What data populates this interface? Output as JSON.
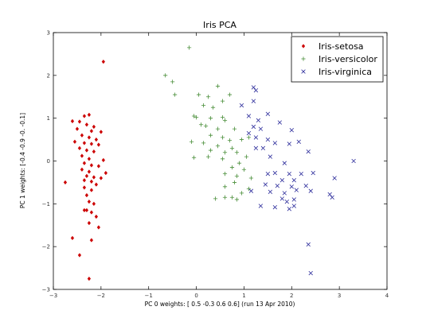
{
  "chart_data": {
    "type": "scatter",
    "title": "Iris PCA",
    "xlabel": "PC 0 weights: [ 0.5 -0.3  0.6  0.6]    (run 13 Apr 2010)",
    "ylabel": "PC 1 weights: [-0.4 -0.9 -0.  -0.1]",
    "xlim": [
      -3,
      4
    ],
    "ylim": [
      -3,
      3
    ],
    "xticks": [
      "−3",
      "−2",
      "−1",
      "0",
      "1",
      "2",
      "3",
      "4"
    ],
    "yticks": [
      "−3",
      "−2",
      "−1",
      "0",
      "1",
      "2",
      "3"
    ],
    "grid": false,
    "legend_position": "top-right",
    "series": [
      {
        "name": "Iris-setosa",
        "marker": "diamond",
        "color": "#cc0000",
        "points": [
          [
            -1.95,
            2.32
          ],
          [
            -2.25,
            1.08
          ],
          [
            -2.35,
            1.05
          ],
          [
            -2.6,
            0.93
          ],
          [
            -2.45,
            0.92
          ],
          [
            -2.3,
            0.85
          ],
          [
            -2.15,
            0.8
          ],
          [
            -2.5,
            0.75
          ],
          [
            -2.2,
            0.7
          ],
          [
            -2.0,
            0.68
          ],
          [
            -2.4,
            0.6
          ],
          [
            -2.25,
            0.55
          ],
          [
            -2.1,
            0.5
          ],
          [
            -2.55,
            0.45
          ],
          [
            -2.35,
            0.42
          ],
          [
            -2.2,
            0.4
          ],
          [
            -2.05,
            0.38
          ],
          [
            -2.45,
            0.3
          ],
          [
            -2.3,
            0.25
          ],
          [
            -2.15,
            0.22
          ],
          [
            -2.4,
            0.12
          ],
          [
            -2.25,
            0.05
          ],
          [
            -1.95,
            0.02
          ],
          [
            -2.35,
            -0.05
          ],
          [
            -2.2,
            -0.1
          ],
          [
            -2.05,
            -0.12
          ],
          [
            -2.4,
            -0.2
          ],
          [
            -2.25,
            -0.25
          ],
          [
            -1.9,
            -0.28
          ],
          [
            -2.3,
            -0.35
          ],
          [
            -2.15,
            -0.38
          ],
          [
            -2.0,
            -0.4
          ],
          [
            -2.35,
            -0.45
          ],
          [
            -2.2,
            -0.48
          ],
          [
            -2.75,
            -0.5
          ],
          [
            -2.1,
            -0.55
          ],
          [
            -2.35,
            -0.62
          ],
          [
            -2.2,
            -0.68
          ],
          [
            -2.3,
            -0.8
          ],
          [
            -2.25,
            -0.95
          ],
          [
            -2.15,
            -1.0
          ],
          [
            -2.35,
            -1.15
          ],
          [
            -2.3,
            -1.15
          ],
          [
            -2.2,
            -1.2
          ],
          [
            -2.1,
            -1.3
          ],
          [
            -2.25,
            -1.45
          ],
          [
            -2.05,
            -1.55
          ],
          [
            -2.6,
            -1.8
          ],
          [
            -2.2,
            -1.85
          ],
          [
            -2.45,
            -2.2
          ],
          [
            -2.25,
            -2.75
          ]
        ]
      },
      {
        "name": "Iris-versicolor",
        "marker": "plus",
        "color": "#4a8f3a",
        "points": [
          [
            -0.15,
            2.65
          ],
          [
            -0.65,
            2.0
          ],
          [
            -0.5,
            1.85
          ],
          [
            -0.45,
            1.55
          ],
          [
            0.05,
            1.55
          ],
          [
            0.45,
            1.75
          ],
          [
            0.7,
            1.55
          ],
          [
            0.25,
            1.5
          ],
          [
            0.55,
            1.4
          ],
          [
            0.15,
            1.3
          ],
          [
            0.35,
            1.25
          ],
          [
            -0.05,
            1.05
          ],
          [
            0.0,
            1.02
          ],
          [
            0.3,
            1.0
          ],
          [
            0.55,
            1.02
          ],
          [
            0.6,
            0.95
          ],
          [
            0.1,
            0.85
          ],
          [
            0.2,
            0.82
          ],
          [
            0.45,
            0.75
          ],
          [
            0.8,
            0.75
          ],
          [
            0.3,
            0.6
          ],
          [
            0.55,
            0.55
          ],
          [
            0.7,
            0.48
          ],
          [
            0.95,
            0.5
          ],
          [
            1.1,
            0.55
          ],
          [
            -0.1,
            0.45
          ],
          [
            0.15,
            0.42
          ],
          [
            0.45,
            0.35
          ],
          [
            0.75,
            0.3
          ],
          [
            0.3,
            0.25
          ],
          [
            0.6,
            0.2
          ],
          [
            0.85,
            0.2
          ],
          [
            1.05,
            0.1
          ],
          [
            -0.05,
            0.08
          ],
          [
            0.25,
            0.1
          ],
          [
            0.55,
            0.05
          ],
          [
            0.9,
            -0.05
          ],
          [
            0.75,
            -0.15
          ],
          [
            1.0,
            -0.2
          ],
          [
            0.6,
            -0.3
          ],
          [
            0.85,
            -0.35
          ],
          [
            1.15,
            -0.4
          ],
          [
            0.8,
            -0.5
          ],
          [
            0.6,
            -0.6
          ],
          [
            1.1,
            -0.65
          ],
          [
            0.95,
            -0.75
          ],
          [
            0.75,
            -0.85
          ],
          [
            0.4,
            -0.88
          ],
          [
            0.6,
            -0.85
          ],
          [
            0.85,
            -0.9
          ]
        ]
      },
      {
        "name": "Iris-virginica",
        "marker": "x",
        "color": "#2a2a9a",
        "points": [
          [
            1.2,
            1.72
          ],
          [
            1.25,
            1.65
          ],
          [
            1.2,
            1.4
          ],
          [
            0.95,
            1.3
          ],
          [
            1.1,
            1.05
          ],
          [
            1.5,
            1.1
          ],
          [
            1.3,
            0.95
          ],
          [
            1.75,
            0.9
          ],
          [
            1.2,
            0.8
          ],
          [
            1.35,
            0.75
          ],
          [
            2.0,
            0.72
          ],
          [
            1.1,
            0.65
          ],
          [
            1.25,
            0.55
          ],
          [
            1.5,
            0.5
          ],
          [
            1.65,
            0.42
          ],
          [
            1.95,
            0.4
          ],
          [
            2.15,
            0.45
          ],
          [
            1.4,
            0.3
          ],
          [
            1.25,
            0.3
          ],
          [
            1.55,
            0.1
          ],
          [
            2.35,
            0.22
          ],
          [
            3.3,
            0.0
          ],
          [
            1.85,
            -0.05
          ],
          [
            1.95,
            -0.3
          ],
          [
            1.5,
            -0.3
          ],
          [
            1.65,
            -0.28
          ],
          [
            2.2,
            -0.3
          ],
          [
            2.45,
            -0.28
          ],
          [
            2.05,
            -0.45
          ],
          [
            2.9,
            -0.4
          ],
          [
            1.8,
            -0.45
          ],
          [
            2.3,
            -0.58
          ],
          [
            1.45,
            -0.55
          ],
          [
            1.7,
            -0.58
          ],
          [
            2.0,
            -0.6
          ],
          [
            1.15,
            -0.7
          ],
          [
            1.55,
            -0.72
          ],
          [
            1.85,
            -0.75
          ],
          [
            2.1,
            -0.68
          ],
          [
            2.4,
            -0.7
          ],
          [
            1.8,
            -0.88
          ],
          [
            2.05,
            -0.9
          ],
          [
            1.9,
            -0.95
          ],
          [
            2.8,
            -0.78
          ],
          [
            2.85,
            -0.85
          ],
          [
            1.35,
            -1.05
          ],
          [
            1.65,
            -1.08
          ],
          [
            1.95,
            -1.12
          ],
          [
            2.05,
            -1.05
          ],
          [
            2.35,
            -1.95
          ],
          [
            2.4,
            -2.62
          ]
        ]
      }
    ]
  }
}
